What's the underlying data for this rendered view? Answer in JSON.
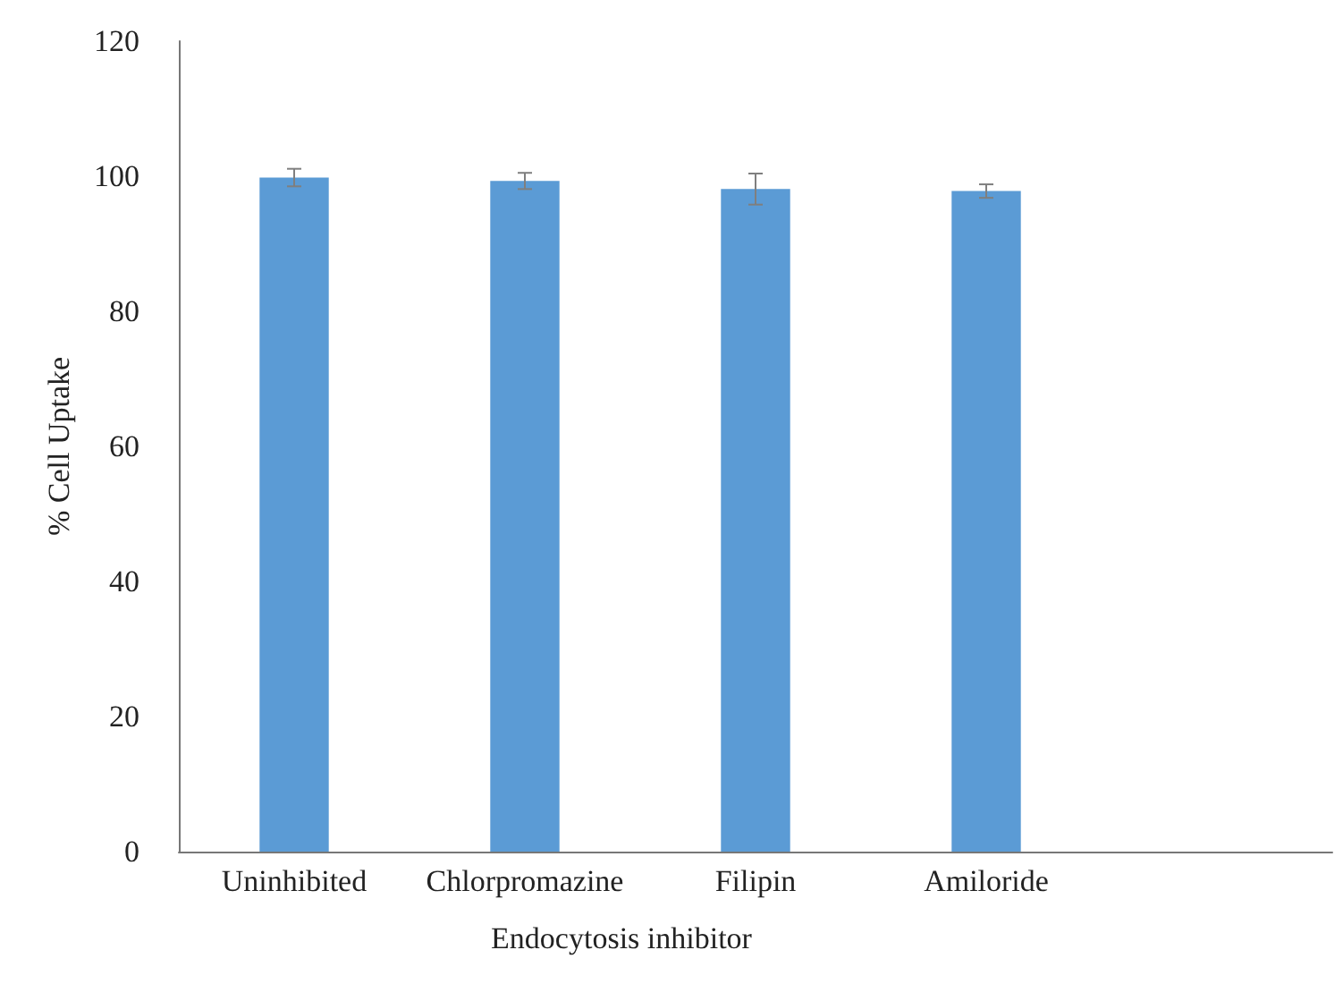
{
  "chart_data": {
    "type": "bar",
    "xlabel": "Endocytosis inhibitor",
    "ylabel": "% Cell Uptake",
    "categories": [
      "Uninhibited",
      "Chlorpromazine",
      "Filipin",
      "Amiloride",
      null
    ],
    "values": [
      99.8,
      99.3,
      98.1,
      97.8,
      null
    ],
    "errors": [
      1.3,
      1.2,
      2.3,
      1.0,
      null
    ],
    "color": "#5b9bd5",
    "ylim": [
      0,
      120
    ],
    "yticks": [
      0,
      20,
      40,
      60,
      80,
      100,
      120
    ],
    "grid": false
  }
}
